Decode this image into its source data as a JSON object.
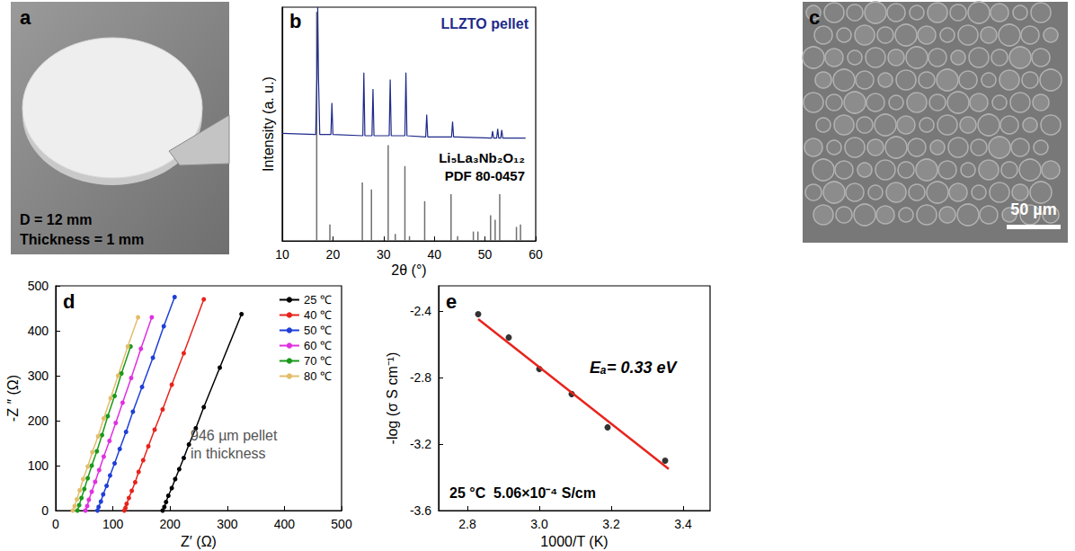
{
  "photos": [
    {
      "panel": "a",
      "texts": [
        "D = 12 mm",
        "Thickness = 1 mm"
      ]
    },
    {
      "panel": "c",
      "scale_bar": "50 µm"
    }
  ],
  "chart_data": [
    {
      "panel": "b",
      "type": "line",
      "xlabel": "2θ (°)",
      "ylabel": "Intensity (a. u.)",
      "xlim": [
        10,
        60
      ],
      "xticks": [
        10,
        20,
        30,
        40,
        50,
        60
      ],
      "ylim": [
        0,
        100
      ],
      "tick_labels": "x",
      "series": [
        {
          "name": "LLZTO pellet",
          "type": "line",
          "color": "#1f2a8a",
          "x": [
            10,
            16.6,
            16.85,
            17.0,
            17.15,
            17.4,
            19.6,
            19.8,
            20.0,
            25.9,
            26.1,
            26.3,
            27.7,
            27.9,
            28.1,
            31.1,
            31.3,
            31.5,
            34.2,
            34.4,
            34.6,
            38.3,
            38.5,
            38.7,
            43.4,
            43.6,
            43.8,
            51.3,
            51.5,
            51.7,
            52.3,
            52.5,
            52.7,
            53.1,
            53.3,
            53.5,
            58
          ],
          "values": [
            46,
            45.5,
            70,
            100,
            70,
            45.5,
            45.5,
            59,
            45.5,
            45,
            72,
            45,
            45,
            65,
            45,
            45,
            69,
            45,
            45,
            72,
            45,
            44.5,
            54,
            44.5,
            44.5,
            51,
            44.5,
            44,
            47,
            44,
            44,
            48,
            44,
            44,
            47.5,
            44,
            44
          ]
        },
        {
          "name": "Li₅La₃Nb₂O₁₂",
          "label_lines": [
            "Li₅La₃Nb₂O₁₂",
            "PDF 80-0457"
          ],
          "type": "bar",
          "color": "#707070",
          "x": [
            16.8,
            19.4,
            25.8,
            27.6,
            30.9,
            32.3,
            34.2,
            35.1,
            38.1,
            43.3,
            44.6,
            47.7,
            48.6,
            51.1,
            52.0,
            52.9,
            56.2,
            57.0
          ],
          "values": [
            98,
            7,
            25,
            22,
            41,
            3,
            32,
            2,
            17,
            20,
            2,
            4,
            4,
            11,
            9,
            20,
            6,
            7
          ]
        }
      ]
    },
    {
      "panel": "d",
      "type": "line",
      "marker": "circle",
      "xlabel": "Z′ (Ω)",
      "ylabel": "-Z ″ (Ω)",
      "xlim": [
        0,
        500
      ],
      "xticks": [
        0,
        100,
        200,
        300,
        400,
        500
      ],
      "ylim": [
        0,
        500
      ],
      "yticks": [
        0,
        100,
        200,
        300,
        400,
        500
      ],
      "legend": "top-right",
      "annotation_lines": [
        "946 µm pellet",
        "in thickness"
      ],
      "series": [
        {
          "name": "25 ℃",
          "color": "#000000",
          "x": [
            187,
            190,
            193,
            197,
            203,
            209,
            216,
            224,
            233,
            245,
            259,
            287,
            325
          ],
          "values": [
            0,
            8,
            19,
            33,
            50,
            70,
            92,
            117,
            147,
            183,
            230,
            318,
            437
          ]
        },
        {
          "name": "40 ℃",
          "color": "#e8231c",
          "x": [
            120,
            122,
            124,
            128,
            133,
            139,
            145,
            153,
            162,
            173,
            187,
            203,
            224,
            259
          ],
          "values": [
            0,
            6,
            15,
            28,
            44,
            63,
            86,
            112,
            143,
            180,
            225,
            280,
            350,
            470
          ]
        },
        {
          "name": "50 ℃",
          "color": "#1f3fd6",
          "x": [
            73,
            75,
            79,
            83,
            89,
            95,
            103,
            112,
            123,
            135,
            151,
            170,
            189,
            208
          ],
          "values": [
            0,
            8,
            20,
            36,
            55,
            78,
            105,
            137,
            175,
            220,
            275,
            340,
            410,
            475
          ]
        },
        {
          "name": "60 ℃",
          "color": "#e030e0",
          "x": [
            52,
            55,
            58,
            63,
            69,
            76,
            84,
            94,
            105,
            117,
            132,
            149,
            168
          ],
          "values": [
            0,
            10,
            24,
            42,
            64,
            90,
            120,
            155,
            195,
            240,
            295,
            360,
            430
          ]
        },
        {
          "name": "70 ℃",
          "color": "#1a9a1a",
          "x": [
            38,
            41,
            45,
            50,
            56,
            63,
            72,
            81,
            91,
            103,
            115,
            131
          ],
          "values": [
            0,
            12,
            28,
            48,
            72,
            100,
            132,
            168,
            210,
            255,
            305,
            365
          ]
        },
        {
          "name": "80 ℃",
          "color": "#e3bd6a",
          "x": [
            30,
            33,
            37,
            42,
            48,
            56,
            64,
            74,
            84,
            96,
            109,
            126,
            144
          ],
          "values": [
            0,
            10,
            25,
            45,
            70,
            98,
            130,
            165,
            205,
            250,
            300,
            365,
            430
          ]
        }
      ]
    },
    {
      "panel": "e",
      "type": "scatter",
      "marker": "circle",
      "xlabel": "1000/T (K)",
      "ylabel": "-log (σ S cm⁻¹)",
      "xlim": [
        2.72,
        3.475
      ],
      "xticks": [
        2.8,
        {
          "value": 3,
          "label": "3.0"
        },
        3.2,
        3.4
      ],
      "ylim": [
        -3.6,
        -2.25
      ],
      "yticks": [
        -3.6,
        -3.2,
        -2.8,
        -2.4
      ],
      "annotations": [
        "Eₐ= 0.33 eV",
        "25 °C  5.06×10⁻⁴ S/cm"
      ],
      "series": [
        {
          "type": "scatter",
          "color": "#000000",
          "x": [
            2.83,
            2.915,
            3.0,
            3.09,
            3.19,
            3.35
          ],
          "values": [
            -2.42,
            -2.56,
            -2.75,
            -2.9,
            -3.1,
            -3.3
          ]
        }
      ],
      "fit": {
        "type": "line",
        "color": "#e8231c",
        "x": [
          2.83,
          3.36
        ],
        "values": [
          -2.45,
          -3.35
        ]
      }
    }
  ]
}
